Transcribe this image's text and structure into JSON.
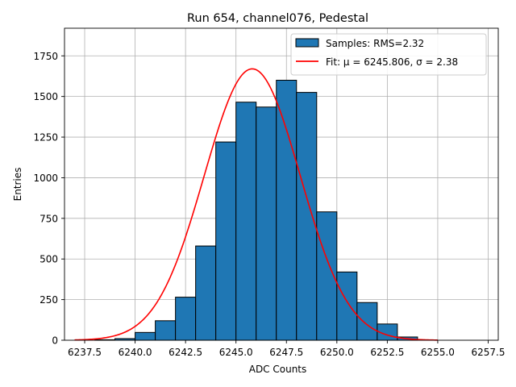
{
  "chart_data": {
    "type": "bar",
    "title": "Run 654, channel076, Pedestal",
    "xlabel": "ADC Counts",
    "ylabel": "Entries",
    "xlim": [
      6236.5,
      6258.0
    ],
    "ylim": [
      0,
      1920
    ],
    "xticks": [
      "6237.5",
      "6240.0",
      "6242.5",
      "6245.0",
      "6247.5",
      "6250.0",
      "6252.5",
      "6255.0",
      "6257.5"
    ],
    "xtick_values": [
      6237.5,
      6240.0,
      6242.5,
      6245.0,
      6247.5,
      6250.0,
      6252.5,
      6255.0,
      6257.5
    ],
    "yticks": [
      "0",
      "250",
      "500",
      "750",
      "1000",
      "1250",
      "1500",
      "1750"
    ],
    "ytick_values": [
      0,
      250,
      500,
      750,
      1000,
      1250,
      1500,
      1750
    ],
    "grid": true,
    "legend_position": "top-right",
    "bins": {
      "edges": [
        6238,
        6239,
        6240,
        6241,
        6242,
        6243,
        6244,
        6245,
        6246,
        6247,
        6248,
        6249,
        6250,
        6251,
        6252,
        6253,
        6254
      ],
      "values": [
        3,
        10,
        48,
        120,
        265,
        580,
        1220,
        1465,
        1435,
        1600,
        1525,
        790,
        420,
        232,
        100,
        20,
        10
      ]
    },
    "series": [
      {
        "name": "Samples: RMS=2.32",
        "kind": "histogram",
        "color": "#1f77b4"
      },
      {
        "name": "Fit: μ = 6245.806, σ = 2.38",
        "kind": "gaussian-fit",
        "color": "#ff0000",
        "mu": 6245.806,
        "sigma": 2.38,
        "amplitude": 1670,
        "x_range": [
          6237.0,
          6255.0
        ]
      }
    ]
  }
}
